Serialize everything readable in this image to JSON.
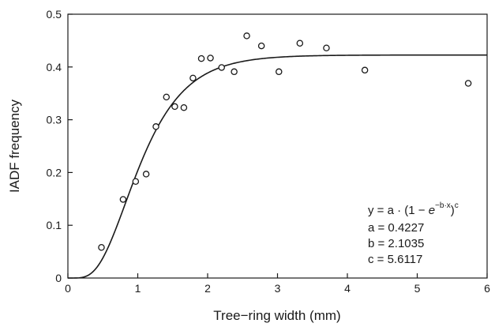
{
  "chart_data": {
    "type": "scatter",
    "xlabel": "Tree−ring width (mm)",
    "ylabel": "IADF frequency",
    "xlim": [
      0,
      6
    ],
    "ylim": [
      0,
      0.5
    ],
    "xticks": [
      0,
      1,
      2,
      3,
      4,
      5,
      6
    ],
    "yticks": [
      0,
      0.1,
      0.2,
      0.3,
      0.4,
      0.5
    ],
    "xtick_labels": [
      "0",
      "1",
      "2",
      "3",
      "4",
      "5",
      "6"
    ],
    "ytick_labels": [
      "0",
      "0.1",
      "0.2",
      "0.3",
      "0.4",
      "0.5"
    ],
    "grid": false,
    "points": [
      {
        "x": 0.48,
        "y": 0.058
      },
      {
        "x": 0.79,
        "y": 0.149
      },
      {
        "x": 0.97,
        "y": 0.183
      },
      {
        "x": 1.12,
        "y": 0.197
      },
      {
        "x": 1.26,
        "y": 0.287
      },
      {
        "x": 1.41,
        "y": 0.343
      },
      {
        "x": 1.53,
        "y": 0.325
      },
      {
        "x": 1.66,
        "y": 0.323
      },
      {
        "x": 1.79,
        "y": 0.379
      },
      {
        "x": 1.91,
        "y": 0.416
      },
      {
        "x": 2.04,
        "y": 0.417
      },
      {
        "x": 2.2,
        "y": 0.399
      },
      {
        "x": 2.38,
        "y": 0.391
      },
      {
        "x": 2.56,
        "y": 0.459
      },
      {
        "x": 2.77,
        "y": 0.44
      },
      {
        "x": 3.02,
        "y": 0.391
      },
      {
        "x": 3.32,
        "y": 0.445
      },
      {
        "x": 3.7,
        "y": 0.436
      },
      {
        "x": 4.25,
        "y": 0.394
      },
      {
        "x": 5.73,
        "y": 0.369
      }
    ],
    "fit": {
      "model": "y = a·(1 − e^(−b·x))^c",
      "a": 0.4227,
      "b": 2.1035,
      "c": 5.6117
    },
    "equation": {
      "lhs": "y = a · (1 − ",
      "e": "e",
      "exponent": "−b·x",
      "rhs": ")",
      "power": "c",
      "a_line": "a = 0.4227",
      "b_line": "b = 2.1035",
      "c_line": "c = 5.6117"
    }
  }
}
